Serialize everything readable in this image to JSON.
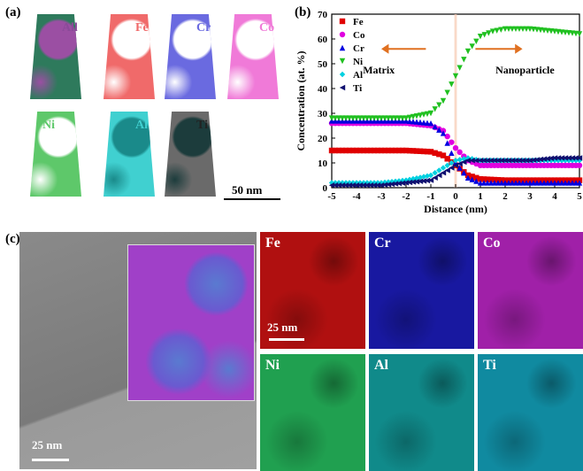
{
  "panel_a": {
    "label": "(a)",
    "tips": [
      {
        "label": "All",
        "color": "#2e7a5c",
        "accent": "#9b4fa3",
        "text_color": "#8b4a99"
      },
      {
        "label": "Fe",
        "color": "#f06a6a",
        "accent": "#ffffff",
        "text_color": "#f06a6a"
      },
      {
        "label": "Cr",
        "color": "#6a6ae0",
        "accent": "#ffffff",
        "text_color": "#6a6ae0"
      },
      {
        "label": "Co",
        "color": "#f07ad8",
        "accent": "#ffffff",
        "text_color": "#f07ad8"
      },
      {
        "label": "Ni",
        "color": "#5ec86a",
        "accent": "#ffffff",
        "text_color": "#5ec86a"
      },
      {
        "label": "Al",
        "color": "#40d0d0",
        "accent": "#1a8a8a",
        "text_color": "#40d0d0"
      },
      {
        "label": "Ti",
        "color": "#6a6a6a",
        "accent": "#1c3c3c",
        "text_color": "#222222"
      }
    ],
    "scalebar": "50 nm"
  },
  "panel_b": {
    "label": "(b)",
    "annotations": {
      "left": "Matrix",
      "right": "Nanoparticle"
    },
    "chart_data": {
      "type": "scatter",
      "xlabel": "Distance (nm)",
      "ylabel": "Concentration (at. %)",
      "xlim": [
        -5,
        5
      ],
      "ylim": [
        0,
        70
      ],
      "xticks": [
        "-5",
        "-4",
        "-3",
        "-2",
        "-1",
        "0",
        "1",
        "2",
        "3",
        "4",
        "5"
      ],
      "yticks": [
        "0",
        "10",
        "20",
        "30",
        "40",
        "50",
        "60",
        "70"
      ],
      "legend": "top-left",
      "series": [
        {
          "name": "Fe",
          "color": "#e00000",
          "marker": "square",
          "x": [
            -5,
            -4,
            -3,
            -2,
            -1,
            -0.5,
            0,
            0.5,
            1,
            2,
            3,
            4,
            5
          ],
          "y": [
            15,
            15,
            15,
            15,
            14.5,
            13,
            9,
            5,
            3.5,
            3,
            3,
            3,
            3
          ]
        },
        {
          "name": "Co",
          "color": "#e000e0",
          "marker": "circle",
          "x": [
            -5,
            -4,
            -3,
            -2,
            -1,
            -0.5,
            0,
            0.5,
            1,
            2,
            3,
            4,
            5
          ],
          "y": [
            26,
            26,
            26,
            26,
            25,
            23,
            16,
            11,
            9,
            9,
            9,
            9,
            9
          ]
        },
        {
          "name": "Cr",
          "color": "#0000e0",
          "marker": "triangle",
          "x": [
            -5,
            -4,
            -3,
            -2,
            -1,
            -0.5,
            0,
            0.5,
            1,
            2,
            3,
            4,
            5
          ],
          "y": [
            27,
            27,
            27,
            27,
            26,
            22,
            10,
            4,
            2,
            2,
            2,
            2,
            2
          ]
        },
        {
          "name": "Ni",
          "color": "#20c020",
          "marker": "triangle-down",
          "x": [
            -5,
            -4,
            -3,
            -2,
            -1,
            -0.5,
            0,
            0.5,
            1,
            1.5,
            2,
            3,
            4,
            5
          ],
          "y": [
            28,
            28,
            28,
            28,
            30,
            35,
            45,
            55,
            61,
            63,
            64,
            64,
            63,
            62
          ]
        },
        {
          "name": "Al",
          "color": "#00d0e0",
          "marker": "diamond",
          "x": [
            -5,
            -4,
            -3,
            -2,
            -1,
            -0.5,
            0,
            0.5,
            1,
            2,
            3,
            4,
            5
          ],
          "y": [
            2,
            2,
            2,
            3,
            5,
            8,
            11,
            12,
            11,
            11,
            11,
            11,
            11
          ]
        },
        {
          "name": "Ti",
          "color": "#101070",
          "marker": "triangle-left",
          "x": [
            -5,
            -4,
            -3,
            -2,
            -1,
            -0.5,
            0,
            0.5,
            1,
            2,
            3,
            4,
            5
          ],
          "y": [
            1,
            1,
            1,
            2,
            3,
            6,
            9,
            11,
            11,
            11,
            11,
            12,
            12
          ]
        }
      ]
    }
  },
  "panel_c": {
    "label": "(c)",
    "scalebar_left": "25 nm",
    "scalebar_map": "25 nm",
    "maps": [
      {
        "label": "Fe",
        "color": "#b01010"
      },
      {
        "label": "Cr",
        "color": "#1818a0"
      },
      {
        "label": "Co",
        "color": "#a020a8"
      },
      {
        "label": "Ni",
        "color": "#20a050"
      },
      {
        "label": "Al",
        "color": "#108a8a"
      },
      {
        "label": "Ti",
        "color": "#108aa0"
      }
    ]
  }
}
